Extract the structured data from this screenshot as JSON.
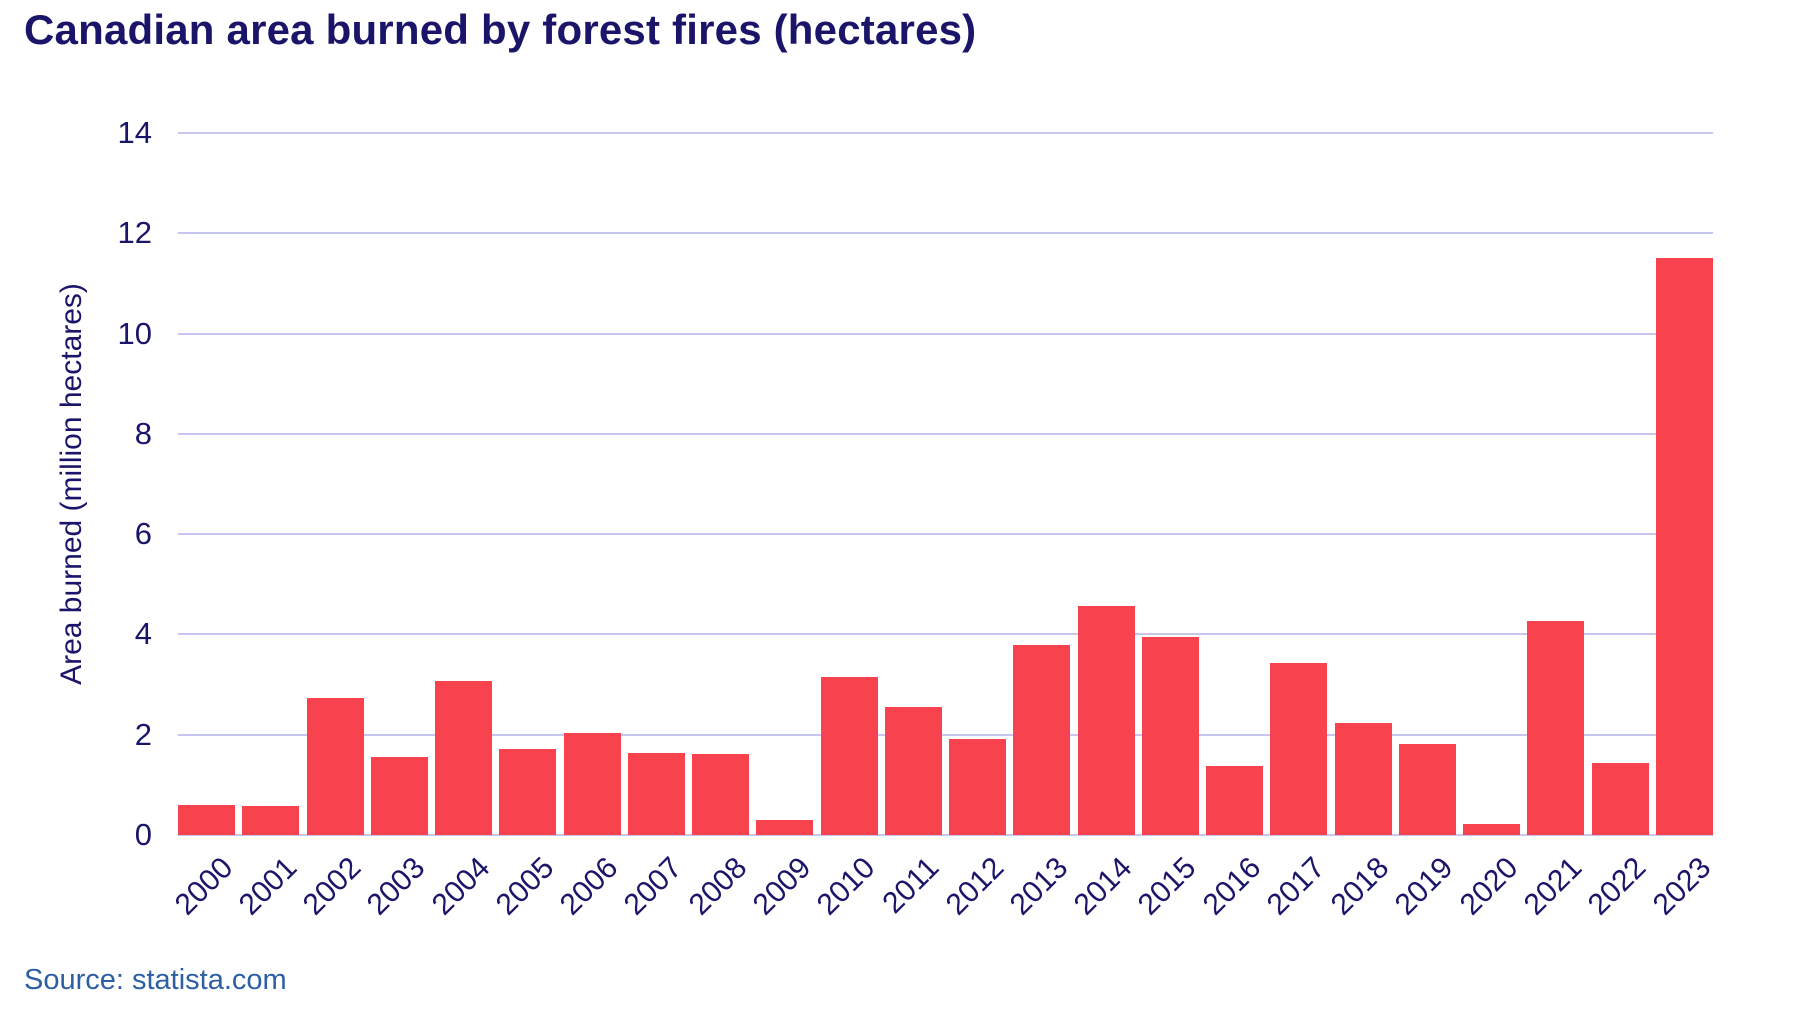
{
  "title": "Canadian area burned by forest fires (hectares)",
  "source_text": "Source: statista.com",
  "colors": {
    "bar": "#f8424e",
    "heading_text": "#1b156a",
    "axis_text": "#1b156a",
    "gridline": "#c7c6f0",
    "source_text": "#2e5fa3",
    "background": "#ffffff"
  },
  "chart_data": {
    "type": "bar",
    "title": "Canadian area burned by forest fires (hectares)",
    "xlabel": "",
    "ylabel": "Area burned (million hectares)",
    "categories": [
      "2000",
      "2001",
      "2002",
      "2003",
      "2004",
      "2005",
      "2006",
      "2007",
      "2008",
      "2009",
      "2010",
      "2011",
      "2012",
      "2013",
      "2014",
      "2015",
      "2016",
      "2017",
      "2018",
      "2019",
      "2020",
      "2021",
      "2022",
      "2023"
    ],
    "values": [
      0.6,
      0.58,
      2.73,
      1.56,
      3.07,
      1.71,
      2.03,
      1.63,
      1.62,
      0.29,
      3.15,
      2.55,
      1.91,
      3.78,
      4.57,
      3.95,
      1.37,
      3.44,
      2.24,
      1.81,
      0.21,
      4.27,
      1.43,
      11.5
    ],
    "ylim": [
      0,
      14
    ],
    "yticks": [
      0,
      2,
      4,
      6,
      8,
      10,
      12,
      14
    ],
    "grid": true,
    "legend": false,
    "source": "statista.com"
  }
}
